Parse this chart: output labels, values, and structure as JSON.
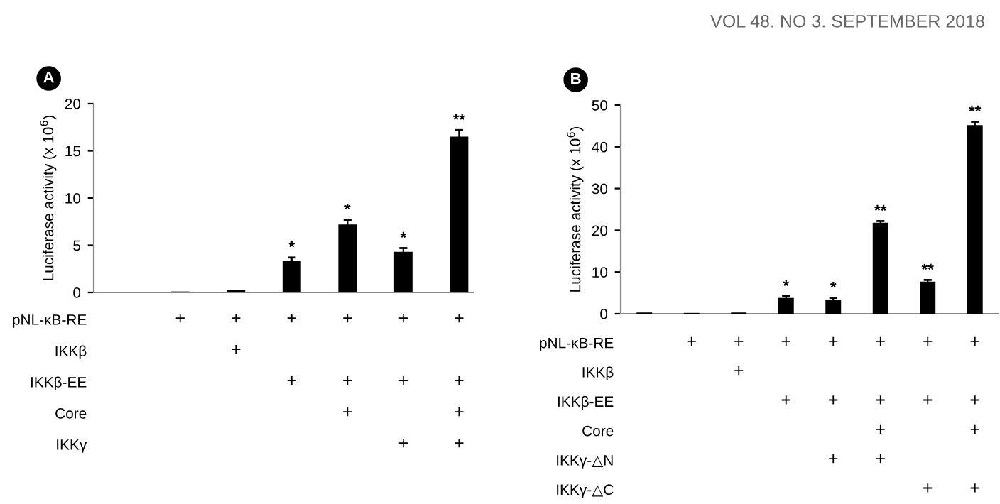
{
  "chart_data": [
    {
      "type": "bar",
      "title": "A",
      "ylabel": "Luciferase activity (x 10$^{6}$)",
      "categories": [
        null,
        null,
        null,
        null,
        null,
        null,
        null
      ],
      "values": [
        0,
        0.1,
        0.3,
        3.3,
        7.2,
        4.3,
        16.5
      ],
      "errors": [
        null,
        null,
        null,
        0.4,
        0.5,
        0.4,
        0.7
      ],
      "value_labels": [
        null,
        null,
        null,
        "*",
        "*",
        "*",
        "**"
      ],
      "color": "#000000",
      "ylim": [
        0,
        20
      ],
      "yticks": [
        0,
        5,
        10,
        15,
        20
      ],
      "grid": false,
      "annotations": [
        "VOL 48. NO 3. SEPTEMBER 2018"
      ]
    },
    {
      "type": "heatmap",
      "categories": [
        null,
        null,
        null,
        null,
        null,
        null,
        null
      ],
      "y_categories": [
        "pNL-κB-RE",
        "IKKβ",
        "IKKβ-EE",
        "Core",
        "IKKγ"
      ],
      "cells": [
        [
          null,
          "+",
          "+",
          "+",
          "+",
          "+",
          "+"
        ],
        [
          null,
          null,
          "+",
          null,
          null,
          null,
          null
        ],
        [
          null,
          null,
          null,
          "+",
          "+",
          "+",
          "+"
        ],
        [
          null,
          null,
          null,
          null,
          "+",
          null,
          "+"
        ],
        [
          null,
          null,
          null,
          null,
          null,
          "+",
          "+"
        ]
      ],
      "color": "#ffffff"
    },
    {
      "type": "bar",
      "title": "B",
      "ylabel": "Luciferase activity (x 10$^{6}$)",
      "categories": [
        null,
        null,
        null,
        null,
        null,
        null,
        null,
        null
      ],
      "values": [
        0.3,
        0.2,
        0.3,
        3.8,
        3.4,
        21.8,
        7.7,
        45.2
      ],
      "errors": [
        null,
        null,
        null,
        0.4,
        0.4,
        0.4,
        0.4,
        0.8
      ],
      "value_labels": [
        null,
        null,
        null,
        "*",
        "*",
        "**",
        "**",
        "**"
      ],
      "color": "#000000",
      "ylim": [
        0,
        50
      ],
      "yticks": [
        0,
        10,
        20,
        30,
        40,
        50
      ],
      "grid": false
    },
    {
      "type": "heatmap",
      "categories": [
        null,
        null,
        null,
        null,
        null,
        null,
        null,
        null
      ],
      "y_categories": [
        "pNL-κB-RE",
        "IKKβ",
        "IKKβ-EE",
        "Core",
        "IKKγ-△N",
        "IKKγ-△C"
      ],
      "cells": [
        [
          null,
          "+",
          "+",
          "+",
          "+",
          "+",
          "+",
          "+"
        ],
        [
          null,
          null,
          "+",
          null,
          null,
          null,
          null,
          null
        ],
        [
          null,
          null,
          null,
          "+",
          "+",
          "+",
          "+",
          "+"
        ],
        [
          null,
          null,
          null,
          null,
          null,
          "+",
          null,
          "+"
        ],
        [
          null,
          null,
          null,
          null,
          "+",
          "+",
          null,
          null
        ],
        [
          null,
          null,
          null,
          null,
          null,
          null,
          "+",
          "+"
        ]
      ],
      "color": "#ffffff"
    }
  ]
}
